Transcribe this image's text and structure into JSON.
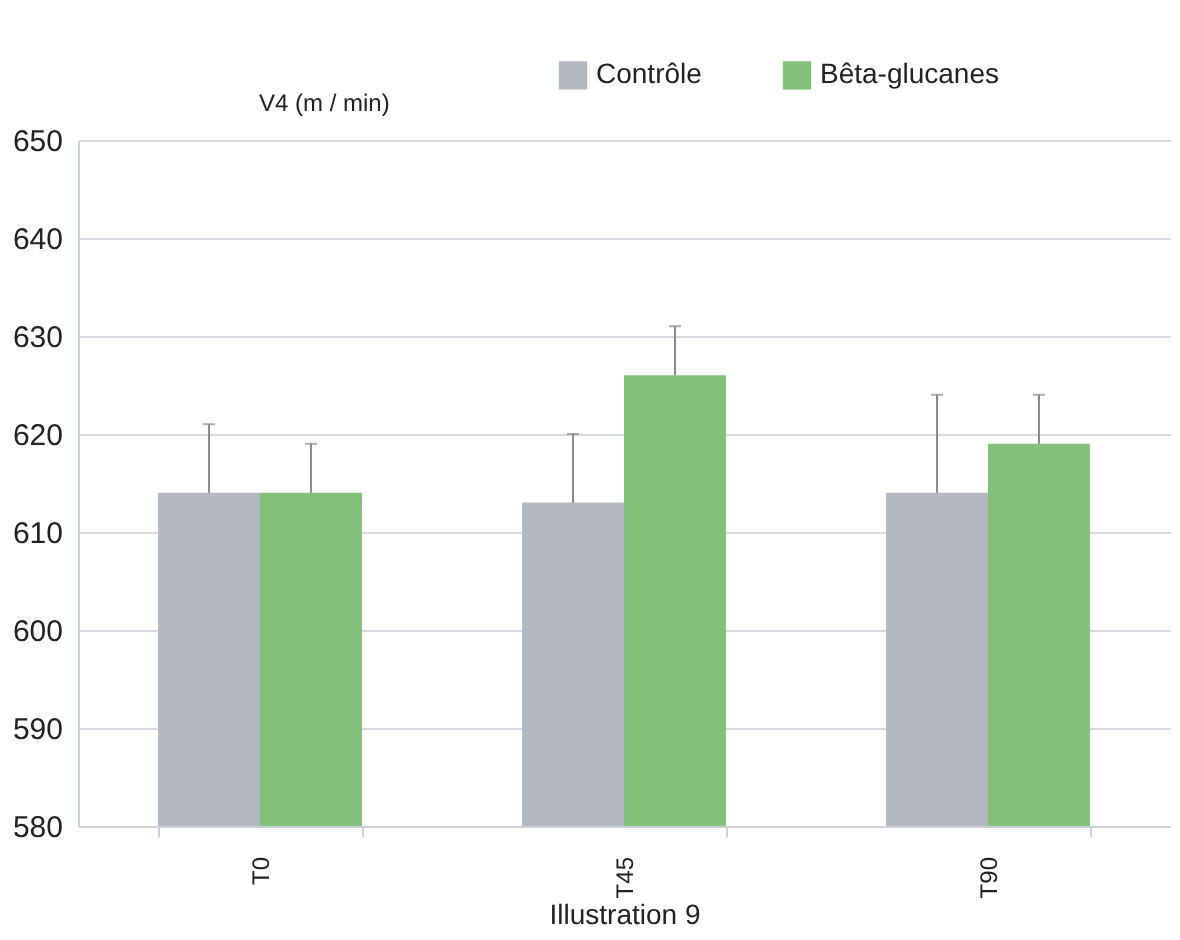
{
  "chart_data": {
    "type": "bar",
    "ylabel": "V4 (m / min)",
    "xlabel": "Illustration 9",
    "categories": [
      "T0",
      "T45",
      "T90"
    ],
    "series": [
      {
        "name": "Contrôle",
        "color": "#b3b7c0",
        "values": [
          614,
          613,
          614
        ],
        "errors": [
          [
            614,
            621
          ],
          [
            613,
            620
          ],
          [
            614,
            624
          ]
        ]
      },
      {
        "name": "Bêta-glucanes",
        "color": "#83c07a",
        "values": [
          614,
          626,
          619
        ],
        "errors": [
          [
            614,
            619
          ],
          [
            626,
            631
          ],
          [
            619,
            624
          ]
        ]
      }
    ],
    "ylim": [
      580,
      650
    ],
    "yticks": [
      580,
      590,
      600,
      610,
      620,
      630,
      640,
      650
    ],
    "grid": "y",
    "legend": "top right"
  }
}
